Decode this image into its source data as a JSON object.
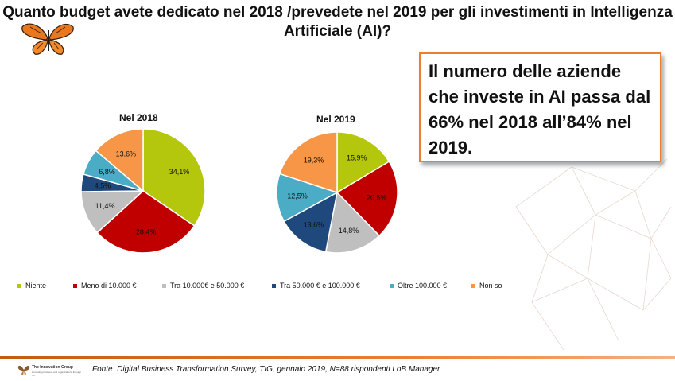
{
  "title": "Quanto budget avete dedicato nel 2018 /prevedete nel 2019 per gli investimenti in Intelligenza Artificiale (AI)?",
  "callout": "Il numero delle aziende che investe in AI passa dal 66% nel 2018 all’84% nel 2019.",
  "chart_data": [
    {
      "type": "pie",
      "title": "Nel 2018",
      "categories": [
        "Niente",
        "Meno di 10.000 €",
        "Tra 10.000€ e 50.000 €",
        "Tra 50.000 € e 100.000 €",
        "Oltre 100.000 €",
        "Non so"
      ],
      "values": [
        34.1,
        28.4,
        11.4,
        4.5,
        6.8,
        13.6
      ],
      "labels": [
        "34,1%",
        "28,4%",
        "11,4%",
        "4,5%",
        "6,8%",
        "13,6%"
      ]
    },
    {
      "type": "pie",
      "title": "Nel 2019",
      "categories": [
        "Niente",
        "Meno di 10.000 €",
        "Tra 10.000€ e 50.000 €",
        "Tra 50.000 € e 100.000 €",
        "Oltre 100.000 €",
        "Non so"
      ],
      "values": [
        15.9,
        20.5,
        14.8,
        13.6,
        12.5,
        19.3
      ],
      "labels": [
        "15,9%",
        "20,5%",
        "14,8%",
        "13,6%",
        "12,5%",
        "19,3%"
      ]
    }
  ],
  "legend": {
    "placement": "bottom",
    "items": [
      "Niente",
      "Meno di 10.000 €",
      "Tra 10.000€ e 50.000 €",
      "Tra 50.000 € e 100.000 €",
      "Oltre 100.000 €",
      "Non so"
    ]
  },
  "colors": [
    "#b5c70d",
    "#c00000",
    "#bfbfbf",
    "#1f497d",
    "#4bacc6",
    "#f79646"
  ],
  "logo": {
    "icon": "butterfly-logo",
    "name": "The Innovation Group",
    "tagline": "innovating business and organizations through ICT"
  },
  "source": "Fonte: Digital Business Transformation Survey, TIG, gennaio 2019, N=88 rispondenti LoB Manager"
}
